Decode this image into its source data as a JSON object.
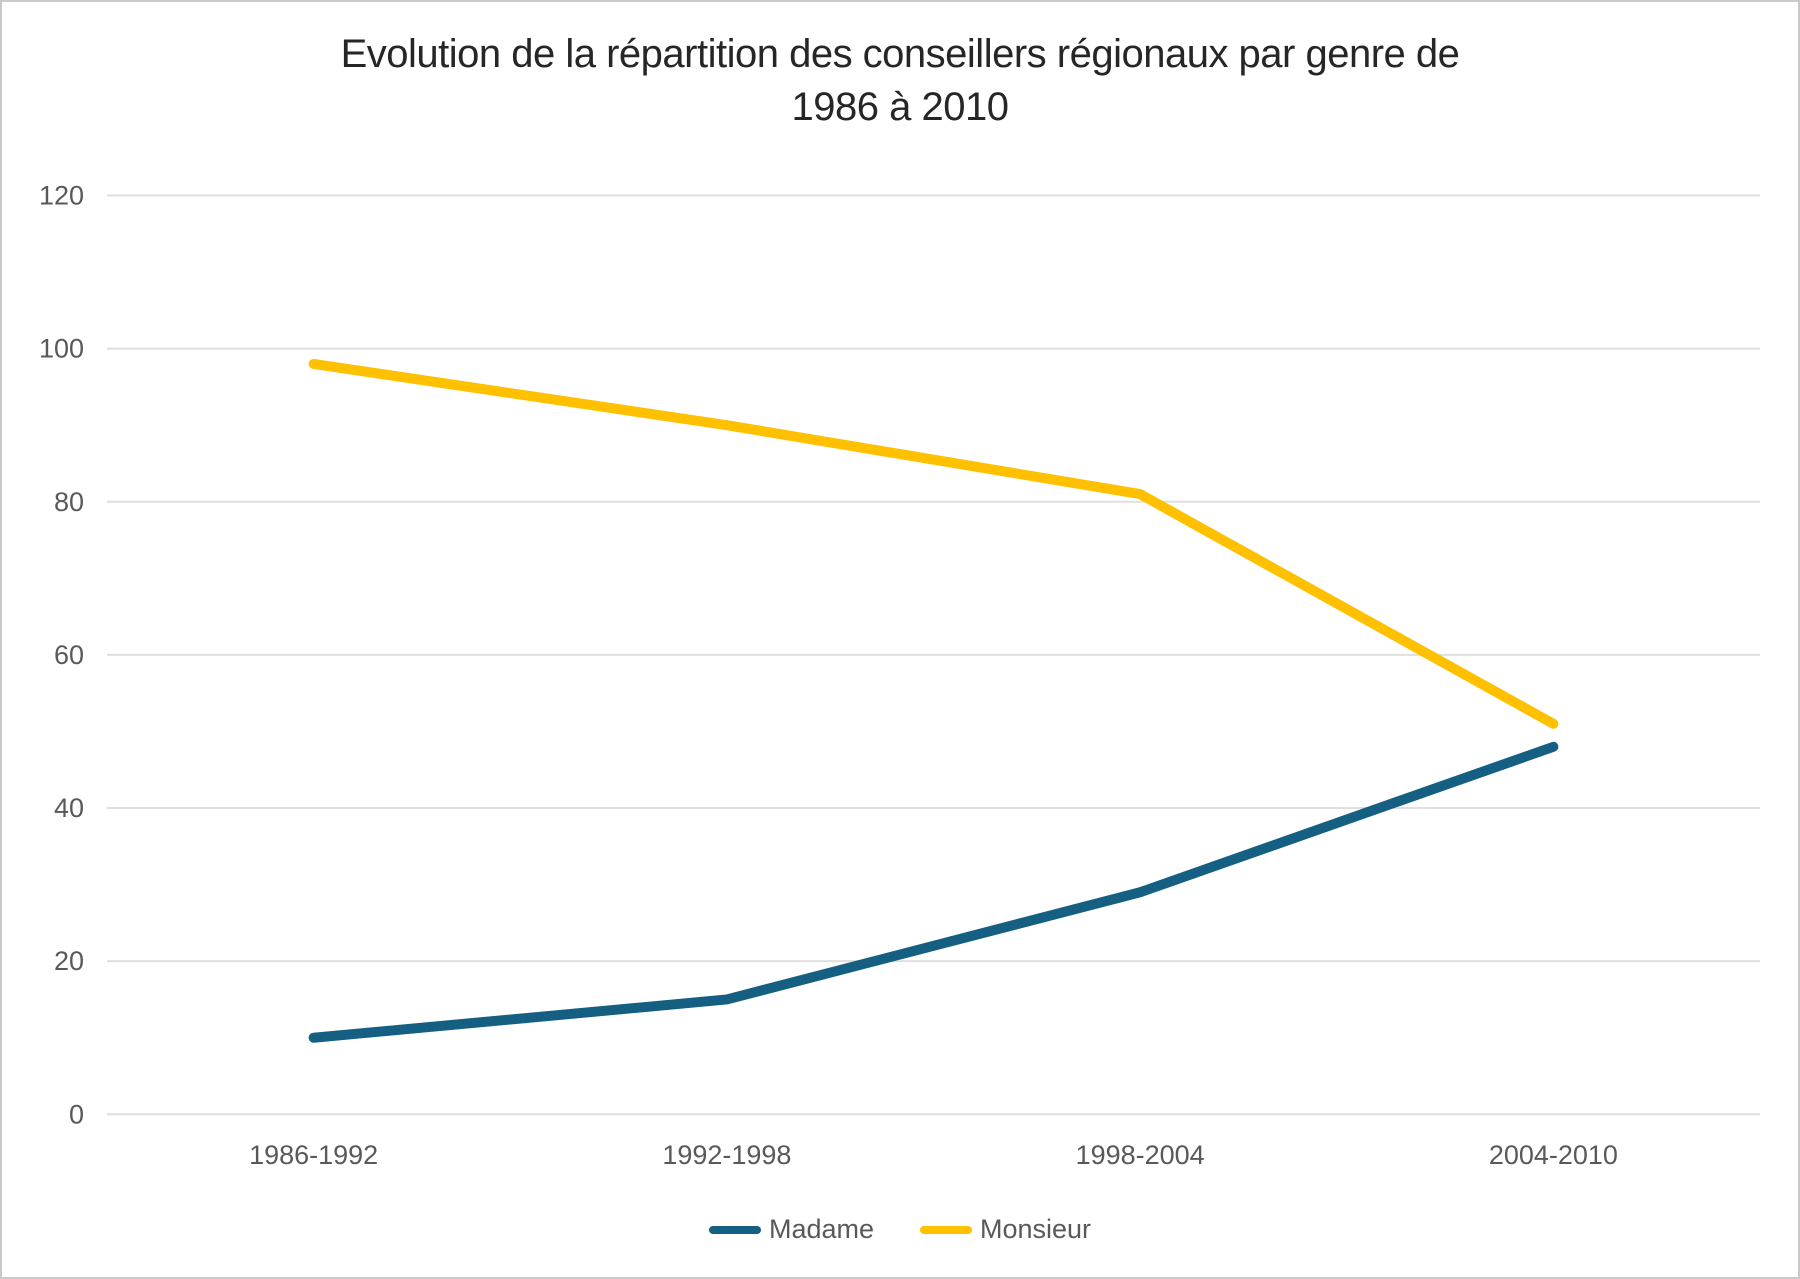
{
  "chart_data": {
    "type": "line",
    "title": "Evolution de la répartition des conseillers régionaux par genre de 1986 à 2010",
    "title_lines": [
      "Evolution de la répartition des conseillers régionaux par genre de",
      "1986 à 2010"
    ],
    "categories": [
      "1986-1992",
      "1992-1998",
      "1998-2004",
      "2004-2010"
    ],
    "series": [
      {
        "name": "Madame",
        "color": "#156082",
        "values": [
          10,
          15,
          29,
          48
        ]
      },
      {
        "name": "Monsieur",
        "color": "#FFC000",
        "values": [
          98,
          90,
          81,
          51
        ]
      }
    ],
    "ylim": [
      0,
      120
    ],
    "yticks": [
      0,
      20,
      40,
      60,
      80,
      100,
      120
    ],
    "grid": true,
    "legend_position": "bottom",
    "colors": {
      "grid": "#dfdfdf",
      "tick_text": "#595959",
      "title_text": "#262626",
      "background": "#ffffff",
      "border": "#c9c9c9"
    }
  }
}
